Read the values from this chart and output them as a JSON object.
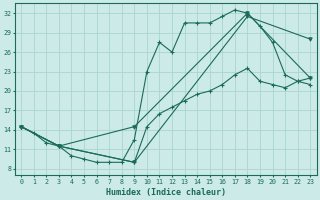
{
  "title": "",
  "xlabel": "Humidex (Indice chaleur)",
  "xlim": [
    -0.5,
    23.5
  ],
  "ylim": [
    7,
    33.5
  ],
  "yticks": [
    8,
    11,
    14,
    17,
    20,
    23,
    26,
    29,
    32
  ],
  "xticks": [
    0,
    1,
    2,
    3,
    4,
    5,
    6,
    7,
    8,
    9,
    10,
    11,
    12,
    13,
    14,
    15,
    16,
    17,
    18,
    19,
    20,
    21,
    22,
    23
  ],
  "bg_color": "#cceae8",
  "line_color": "#1a6b5a",
  "grid_color": "#aad4d0",
  "curve1_x": [
    0,
    1,
    2,
    3,
    4,
    5,
    6,
    7,
    8,
    9,
    10,
    11,
    12,
    13,
    14,
    15,
    16,
    17,
    18,
    19,
    20,
    21,
    22,
    23
  ],
  "curve1_y": [
    14.5,
    13.5,
    12.0,
    11.5,
    10.0,
    9.5,
    9.0,
    9.0,
    9.0,
    12.5,
    23.0,
    27.5,
    26.0,
    30.5,
    30.5,
    30.5,
    31.5,
    32.5,
    32.0,
    30.0,
    27.5,
    22.5,
    21.5,
    22.0
  ],
  "curve2_x": [
    0,
    3,
    9,
    10,
    11,
    12,
    13,
    14,
    15,
    16,
    17,
    18,
    19,
    20,
    21,
    22,
    23
  ],
  "curve2_y": [
    14.5,
    11.5,
    9.0,
    14.5,
    16.5,
    17.5,
    18.5,
    19.5,
    20.0,
    21.0,
    22.5,
    23.5,
    21.5,
    21.0,
    20.5,
    21.5,
    21.0
  ],
  "curve3_x": [
    0,
    3,
    9,
    18,
    23
  ],
  "curve3_y": [
    14.5,
    11.5,
    14.5,
    32.0,
    22.0
  ],
  "curve4_x": [
    0,
    3,
    9,
    18,
    23
  ],
  "curve4_y": [
    14.5,
    11.5,
    9.0,
    31.5,
    28.0
  ]
}
